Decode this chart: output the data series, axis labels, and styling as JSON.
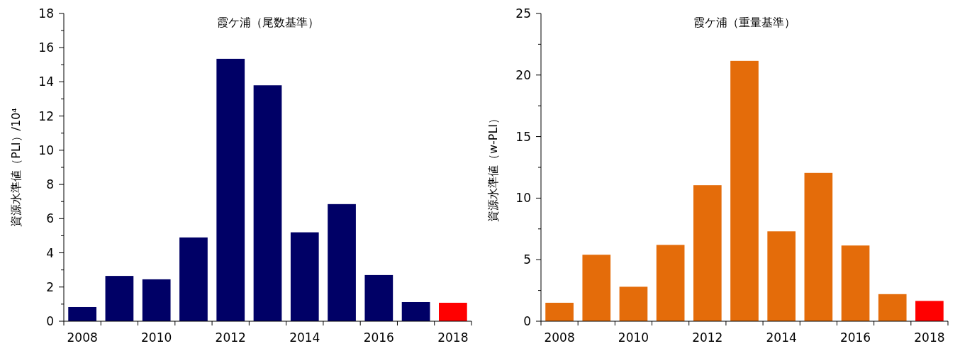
{
  "chart_data": [
    {
      "type": "bar",
      "title": "霞ケ浦（尾数基準）",
      "ylabel": "資源水準値（PLI）/10⁴",
      "categories": [
        "2008",
        null,
        "2010",
        null,
        "2012",
        null,
        "2014",
        null,
        "2016",
        null,
        "2018"
      ],
      "values": [
        0.83,
        2.65,
        2.45,
        4.9,
        15.35,
        13.8,
        5.2,
        6.85,
        2.7,
        1.12,
        1.08
      ],
      "colors": [
        "#000066",
        "#000066",
        "#000066",
        "#000066",
        "#000066",
        "#000066",
        "#000066",
        "#000066",
        "#000066",
        "#000066",
        "#ff0000"
      ],
      "ylim": [
        0,
        18
      ],
      "yticks": [
        0,
        {
          "value": 1,
          "label": null
        },
        2,
        {
          "value": 3,
          "label": null
        },
        4,
        {
          "value": 5,
          "label": null
        },
        6,
        {
          "value": 7,
          "label": null
        },
        8,
        {
          "value": 9,
          "label": null
        },
        10,
        {
          "value": 11,
          "label": null
        },
        12,
        {
          "value": 13,
          "label": null
        },
        14,
        {
          "value": 15,
          "label": null
        },
        16,
        {
          "value": 17,
          "label": null
        },
        18
      ]
    },
    {
      "type": "bar",
      "title": "霞ケ浦（重量基準）",
      "ylabel": "資源水準値（w-PLI）",
      "categories": [
        "2008",
        null,
        "2010",
        null,
        "2012",
        null,
        "2014",
        null,
        "2016",
        null,
        "2018"
      ],
      "values": [
        1.5,
        5.4,
        2.8,
        6.2,
        11.05,
        21.15,
        7.3,
        12.05,
        6.15,
        2.2,
        1.65
      ],
      "colors": [
        "#e46c0a",
        "#e46c0a",
        "#e46c0a",
        "#e46c0a",
        "#e46c0a",
        "#e46c0a",
        "#e46c0a",
        "#e46c0a",
        "#e46c0a",
        "#e46c0a",
        "#ff0000"
      ],
      "ylim": [
        0,
        25
      ],
      "yticks": [
        0,
        {
          "value": 2.5,
          "label": null
        },
        5,
        {
          "value": 7.5,
          "label": null
        },
        10,
        {
          "value": 12.5,
          "label": null
        },
        15,
        {
          "value": 17.5,
          "label": null
        },
        20,
        {
          "value": 22.5,
          "label": null
        },
        25
      ]
    }
  ]
}
